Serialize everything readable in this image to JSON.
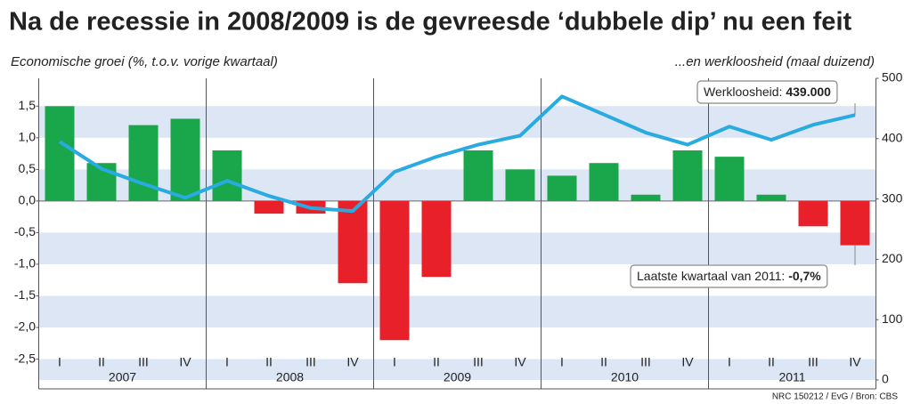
{
  "chart_data": {
    "type": "bar",
    "title": "Na de recessie in 2008/2009 is de gevreesde ‘dubbele dip’ nu een feit",
    "y_label": "Economische groei (%, t.o.v. vorige kwartaal)",
    "y2_label": "...en werkloosheid (maal duizend)",
    "categories": [
      "I",
      "II",
      "III",
      "IV",
      "I",
      "II",
      "III",
      "IV",
      "I",
      "II",
      "III",
      "IV",
      "I",
      "II",
      "III",
      "IV",
      "I",
      "II",
      "III",
      "IV"
    ],
    "years": [
      "2007",
      "2008",
      "2009",
      "2010",
      "2011"
    ],
    "series": [
      {
        "type": "bar",
        "positive_color": "#1aa64a",
        "negative_color": "#e8202a",
        "values": [
          1.5,
          0.6,
          1.2,
          1.3,
          0.8,
          -0.2,
          -0.2,
          -1.3,
          -2.2,
          -1.2,
          0.8,
          0.5,
          0.4,
          0.6,
          0.1,
          0.8,
          0.7,
          0.1,
          -0.4,
          -0.7
        ]
      },
      {
        "type": "line",
        "axis": "y2",
        "color": "#29abe2",
        "values": [
          395,
          350,
          325,
          302,
          330,
          305,
          285,
          280,
          345,
          370,
          390,
          405,
          470,
          440,
          410,
          390,
          420,
          398,
          423,
          439
        ]
      }
    ],
    "ylim": [
      -2.83,
      1.94
    ],
    "yticks": [
      {
        "value": 1.5,
        "label": "1,5"
      },
      {
        "value": 1.0,
        "label": "1,0"
      },
      {
        "value": 0.5,
        "label": "0,5"
      },
      {
        "value": 0,
        "label": "0,0"
      },
      {
        "value": -0.5,
        "label": "-0,5"
      },
      {
        "value": -1.0,
        "label": "-1,0"
      },
      {
        "value": -1.5,
        "label": "-1,5"
      },
      {
        "value": -2.0,
        "label": "-2,0"
      },
      {
        "value": -2.5,
        "label": "-2,5"
      }
    ],
    "y2lim": [
      0,
      500
    ],
    "y2ticks": [
      0,
      100,
      200,
      300,
      400,
      500
    ],
    "annotations": [
      {
        "label": "Werkloosheid:",
        "value_label": "439.000"
      },
      {
        "label": "Laatste kwartaal van 2011:",
        "value_label": "-0,7%"
      }
    ],
    "source": "NRC 150212 / EvG / Bron: CBS"
  }
}
